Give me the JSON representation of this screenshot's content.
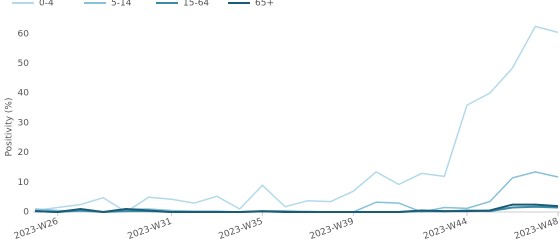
{
  "chart_data": {
    "type": "line",
    "y_label": "Positivity (%)",
    "categories": [
      null,
      "2023-W26",
      null,
      null,
      null,
      null,
      "2023-W31",
      null,
      null,
      null,
      "2023-W35",
      null,
      null,
      null,
      "2023-W39",
      null,
      null,
      null,
      null,
      "2023-W44",
      null,
      null,
      null,
      "2023-W48"
    ],
    "series": [
      {
        "name": "0-4",
        "color": "#b3d9ea",
        "values": [
          0.5,
          1.5,
          2.5,
          4.8,
          0,
          5,
          4.3,
          3,
          5.3,
          1,
          9,
          1.8,
          3.8,
          3.5,
          7,
          13.5,
          9.3,
          13,
          12,
          36,
          40,
          48.5,
          62.5,
          60.5
        ]
      },
      {
        "name": "5-14",
        "color": "#86c0d9",
        "values": [
          1,
          0.5,
          0.3,
          0,
          1,
          1,
          0.5,
          0.3,
          0.3,
          0,
          0.3,
          0,
          0.2,
          0,
          0,
          3.3,
          3,
          0,
          1.5,
          1.2,
          3.5,
          11.5,
          13.5,
          11.8
        ]
      },
      {
        "name": "15-64",
        "color": "#3a8aa8",
        "values": [
          0.3,
          0,
          0.5,
          0,
          0.3,
          0.3,
          0,
          0,
          0,
          0,
          0.3,
          0.2,
          0,
          0,
          0,
          0,
          0,
          0.3,
          0.2,
          0.5,
          0.3,
          1.5,
          1.8,
          1.5
        ]
      },
      {
        "name": "65+",
        "color": "#1b5b75",
        "values": [
          0.3,
          0,
          1,
          0,
          1,
          0.5,
          0,
          0,
          0,
          0,
          0.2,
          0,
          0,
          0,
          0,
          0,
          0,
          0.5,
          0.3,
          0.3,
          0.5,
          2.5,
          2.5,
          2
        ]
      }
    ],
    "ylim": [
      0,
      65
    ],
    "yticks": [
      0,
      10,
      20,
      30,
      40,
      50,
      60
    ]
  }
}
